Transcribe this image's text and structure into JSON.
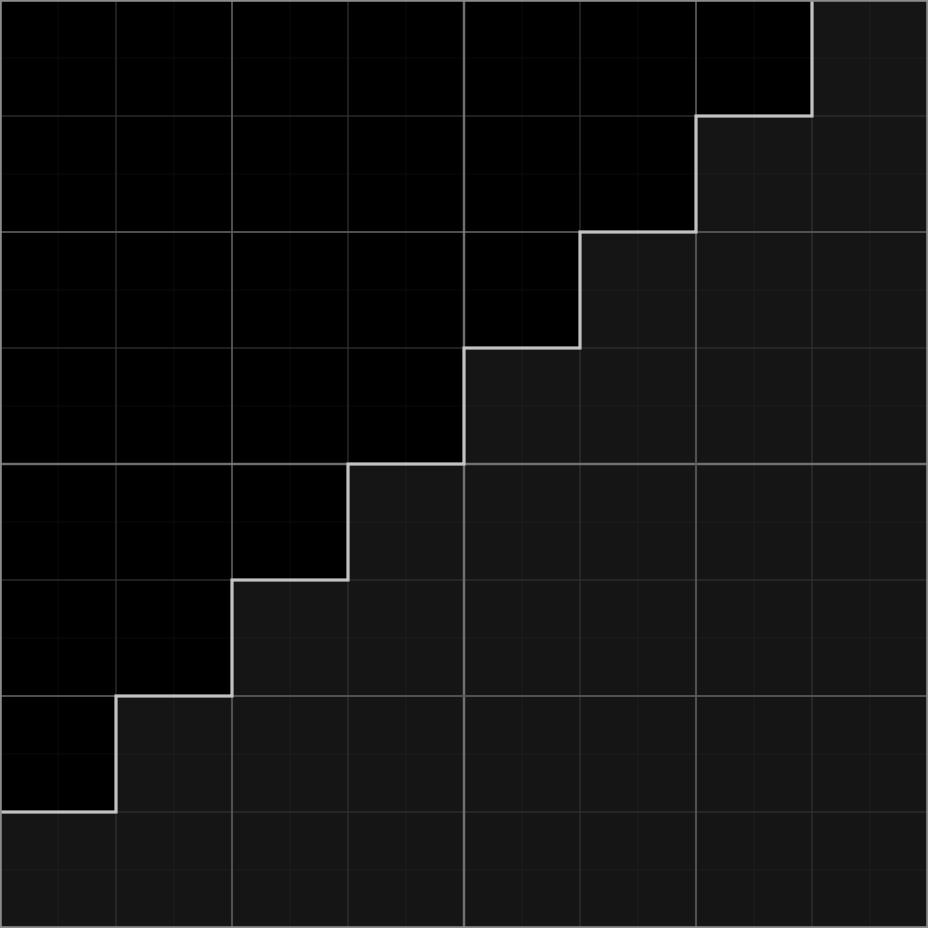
{
  "grid": {
    "cells_per_side": 8,
    "subdivisions_per_cell": 2,
    "major_line_every": 4
  },
  "staircase": {
    "boundary_rows_per_column": [
      7,
      6,
      5,
      4,
      3,
      2,
      1,
      0
    ]
  },
  "colors": {
    "upper_region": "#000000",
    "lower_region": "#151515",
    "fine_line_on_dark": "#0d0d0d",
    "fine_line_on_light": "#1d1d1d",
    "cell_line": "#2f2f2f",
    "major_line": "#5a5a5a",
    "quarter_line": "#7a7a7a",
    "staircase_line": "#c8c8c8",
    "frame": "#8c8c8c"
  }
}
